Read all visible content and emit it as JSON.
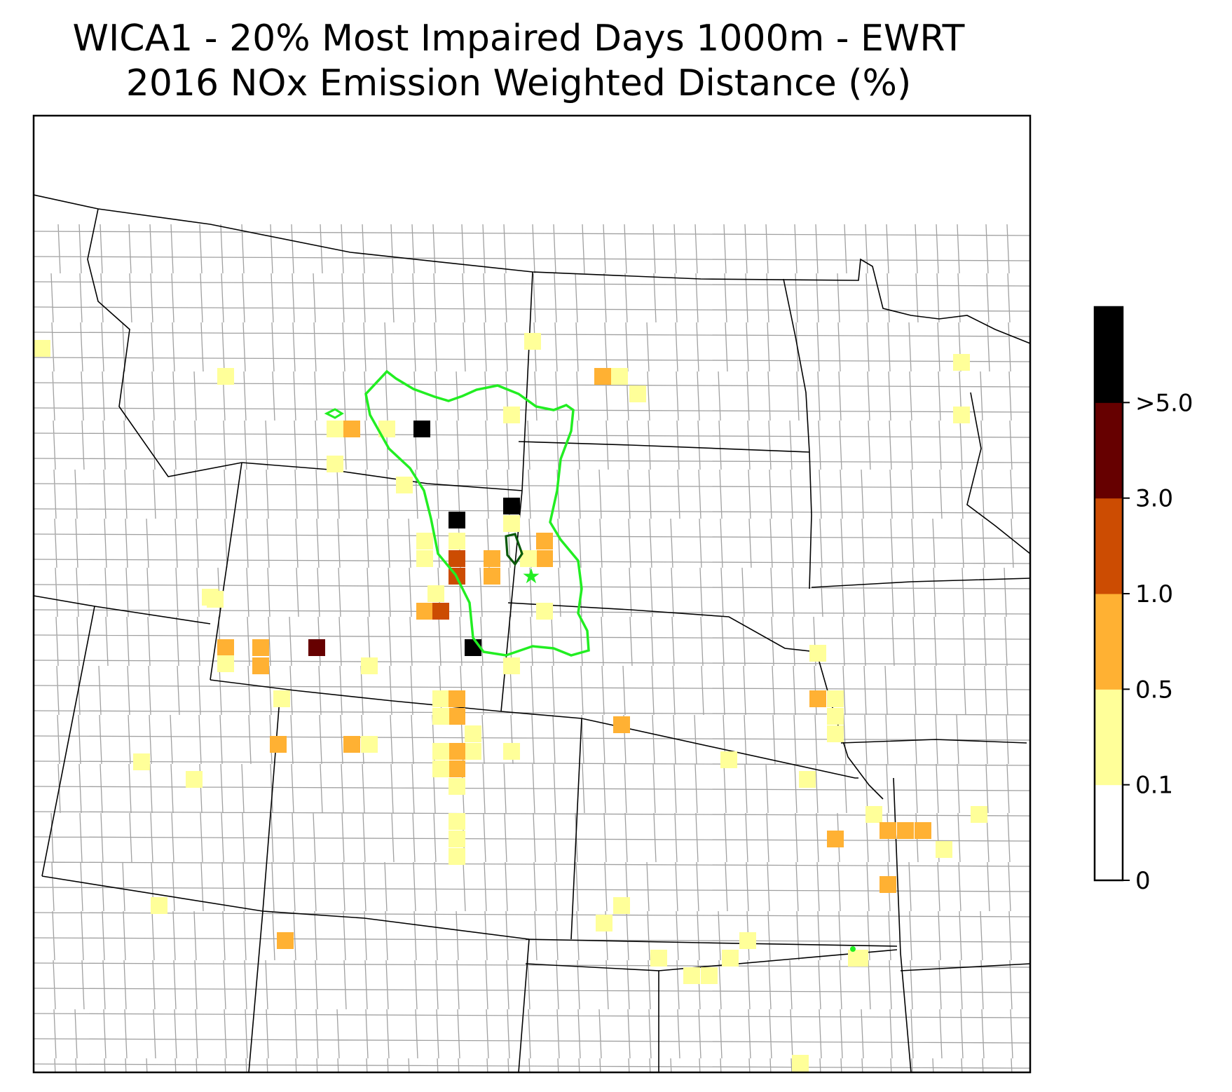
{
  "title": "WICA1 - 20% Most Impaired Days 1000m - EWRT",
  "subtitle": "2016 NOx Emission Weighted Distance (%)",
  "colorbar": {
    "bins": [
      {
        "label": "0",
        "color": "#ffffff"
      },
      {
        "label": "0.1",
        "color": "#ffff99"
      },
      {
        "label": "0.5",
        "color": "#ffb133"
      },
      {
        "label": "1.0",
        "color": "#cc4c02"
      },
      {
        "label": "3.0",
        "color": "#660000"
      },
      {
        "label": ">5.0",
        "color": "#000000"
      }
    ]
  },
  "colors": {
    "state_boundary": "#000000",
    "county_boundary": "#a0a0a0",
    "contour_outer": "#22ee22",
    "contour_inner": "#0a5a0a",
    "site_marker": "#22ee22"
  },
  "features": {
    "site_marker_icon": "star-icon",
    "contour_line": "emission-contour"
  }
}
